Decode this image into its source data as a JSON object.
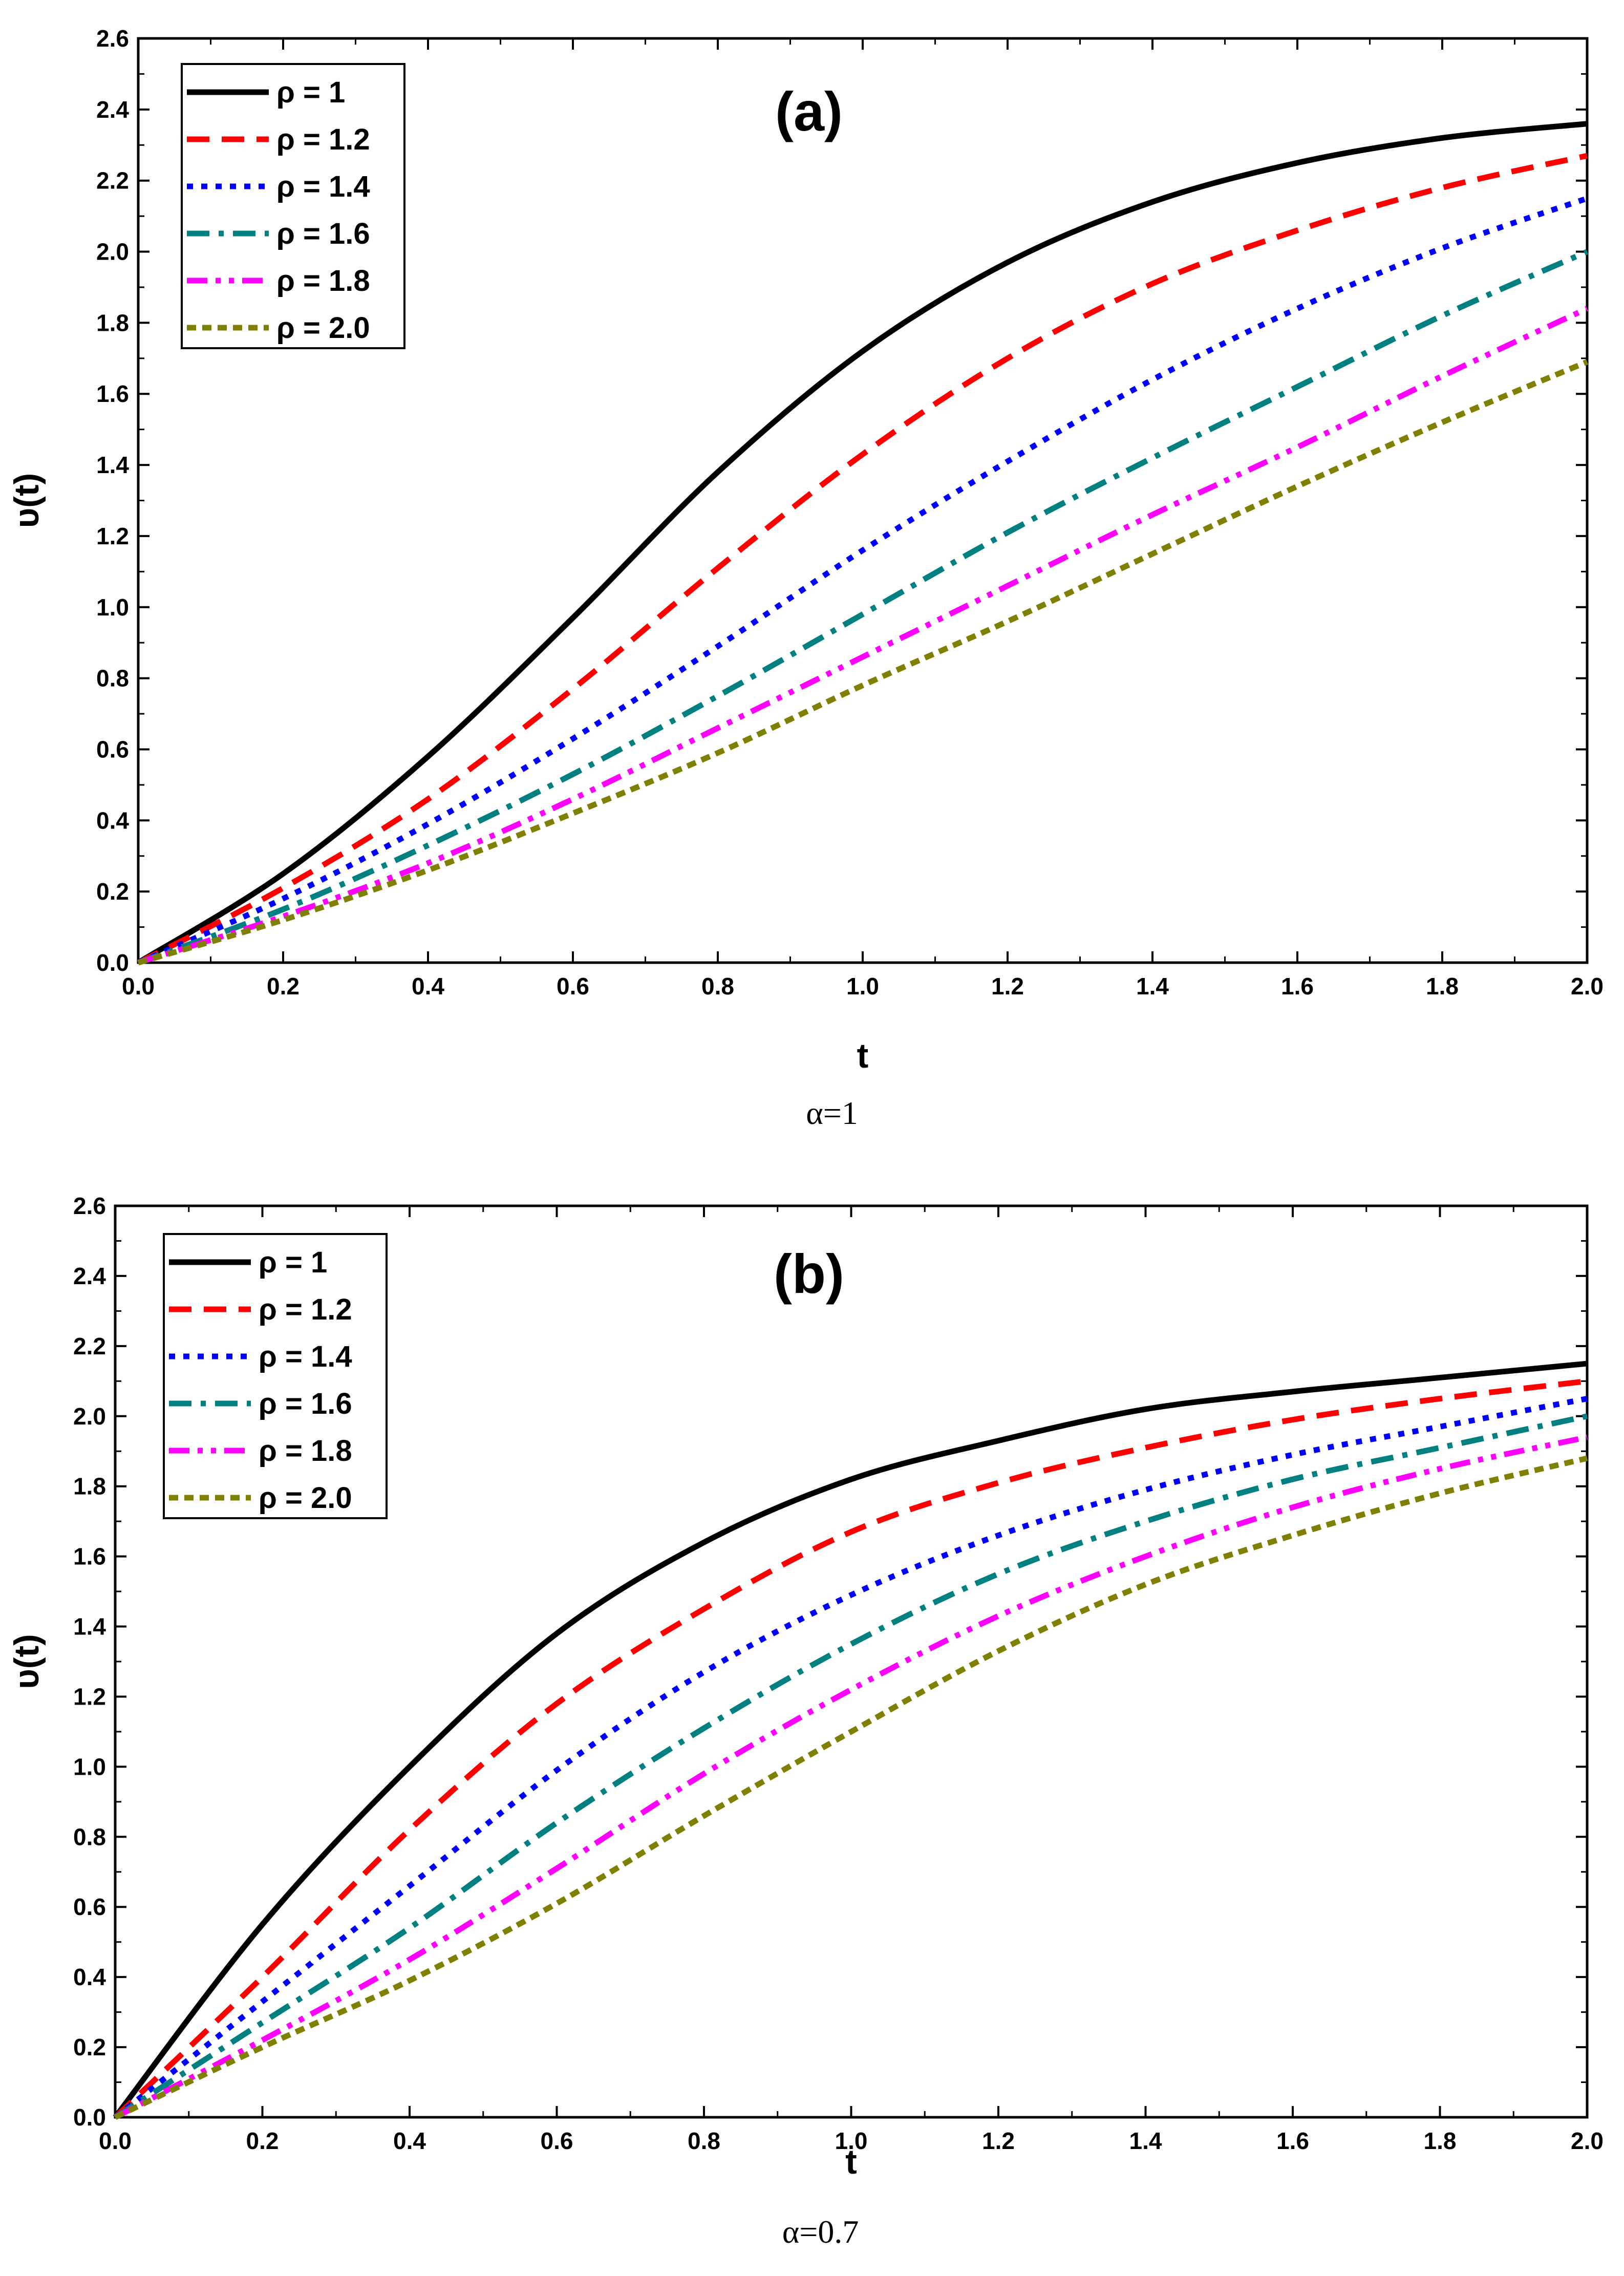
{
  "chart_data": [
    {
      "type": "line",
      "panel_label": "(a)",
      "caption": "α=1",
      "xlabel": "t",
      "ylabel": "υ(t)",
      "xlim": [
        0,
        2
      ],
      "ylim": [
        0,
        2.6
      ],
      "xticks": [
        "0.0",
        "0.2",
        "0.4",
        "0.6",
        "0.8",
        "1.0",
        "1.2",
        "1.4",
        "1.6",
        "1.8",
        "2.0"
      ],
      "yticks": [
        "0.0",
        "0.2",
        "0.4",
        "0.6",
        "0.8",
        "1.0",
        "1.2",
        "1.4",
        "1.6",
        "1.8",
        "2.0",
        "2.2",
        "2.4",
        "2.6"
      ],
      "legend_position": "top-left",
      "x": [
        0,
        0.2,
        0.4,
        0.6,
        0.8,
        1.0,
        1.2,
        1.4,
        1.6,
        1.8,
        2.0
      ],
      "series": [
        {
          "name": "ρ = 1",
          "color": "#000000",
          "dash": "solid",
          "values": [
            0,
            0.25,
            0.58,
            0.97,
            1.38,
            1.72,
            1.97,
            2.14,
            2.25,
            2.32,
            2.36
          ]
        },
        {
          "name": "ρ = 1.2",
          "color": "#ff0000",
          "dash": "dash",
          "values": [
            0,
            0.21,
            0.46,
            0.77,
            1.11,
            1.43,
            1.7,
            1.91,
            2.06,
            2.18,
            2.27
          ]
        },
        {
          "name": "ρ = 1.4",
          "color": "#0000ff",
          "dash": "dot",
          "values": [
            0,
            0.18,
            0.39,
            0.63,
            0.89,
            1.16,
            1.41,
            1.64,
            1.84,
            2.01,
            2.15
          ]
        },
        {
          "name": "ρ = 1.6",
          "color": "#008080",
          "dash": "dashdot",
          "values": [
            0,
            0.15,
            0.33,
            0.53,
            0.75,
            0.98,
            1.21,
            1.42,
            1.62,
            1.82,
            2.0
          ]
        },
        {
          "name": "ρ = 1.8",
          "color": "#ff00ff",
          "dash": "dashdotdot",
          "values": [
            0,
            0.13,
            0.28,
            0.46,
            0.66,
            0.86,
            1.06,
            1.26,
            1.45,
            1.65,
            1.84
          ]
        },
        {
          "name": "ρ = 2.0",
          "color": "#808000",
          "dash": "shortdash",
          "values": [
            0,
            0.12,
            0.26,
            0.42,
            0.59,
            0.78,
            0.96,
            1.15,
            1.34,
            1.52,
            1.69
          ]
        }
      ]
    },
    {
      "type": "line",
      "panel_label": "(b)",
      "caption": "α=0.7",
      "xlabel": "t",
      "ylabel": "υ(t)",
      "xlim": [
        0,
        2
      ],
      "ylim": [
        0,
        2.6
      ],
      "xticks": [
        "0.0",
        "0.2",
        "0.4",
        "0.6",
        "0.8",
        "1.0",
        "1.2",
        "1.4",
        "1.6",
        "1.8",
        "2.0"
      ],
      "yticks": [
        "0.0",
        "0.2",
        "0.4",
        "0.6",
        "0.8",
        "1.0",
        "1.2",
        "1.4",
        "1.6",
        "1.8",
        "2.0",
        "2.2",
        "2.4",
        "2.6"
      ],
      "legend_position": "top-left",
      "x": [
        0,
        0.2,
        0.4,
        0.6,
        0.8,
        1.0,
        1.2,
        1.4,
        1.6,
        1.8,
        2.0
      ],
      "series": [
        {
          "name": "ρ = 1",
          "color": "#000000",
          "dash": "solid",
          "values": [
            0,
            0.55,
            1.0,
            1.38,
            1.64,
            1.82,
            1.93,
            2.02,
            2.07,
            2.11,
            2.15
          ]
        },
        {
          "name": "ρ = 1.2",
          "color": "#ff0000",
          "dash": "dash",
          "values": [
            0,
            0.4,
            0.82,
            1.18,
            1.45,
            1.67,
            1.81,
            1.91,
            1.99,
            2.05,
            2.1
          ]
        },
        {
          "name": "ρ = 1.4",
          "color": "#0000ff",
          "dash": "dot",
          "values": [
            0,
            0.33,
            0.66,
            0.99,
            1.27,
            1.49,
            1.66,
            1.79,
            1.89,
            1.97,
            2.05
          ]
        },
        {
          "name": "ρ = 1.6",
          "color": "#008080",
          "dash": "dashdot",
          "values": [
            0,
            0.27,
            0.54,
            0.84,
            1.11,
            1.35,
            1.55,
            1.7,
            1.82,
            1.91,
            2.0
          ]
        },
        {
          "name": "ρ = 1.8",
          "color": "#ff00ff",
          "dash": "dashdotdot",
          "values": [
            0,
            0.22,
            0.45,
            0.71,
            0.98,
            1.22,
            1.43,
            1.6,
            1.74,
            1.85,
            1.94
          ]
        },
        {
          "name": "ρ = 2.0",
          "color": "#808000",
          "dash": "shortdash",
          "values": [
            0,
            0.2,
            0.39,
            0.61,
            0.86,
            1.1,
            1.33,
            1.52,
            1.66,
            1.78,
            1.88
          ]
        }
      ]
    }
  ]
}
